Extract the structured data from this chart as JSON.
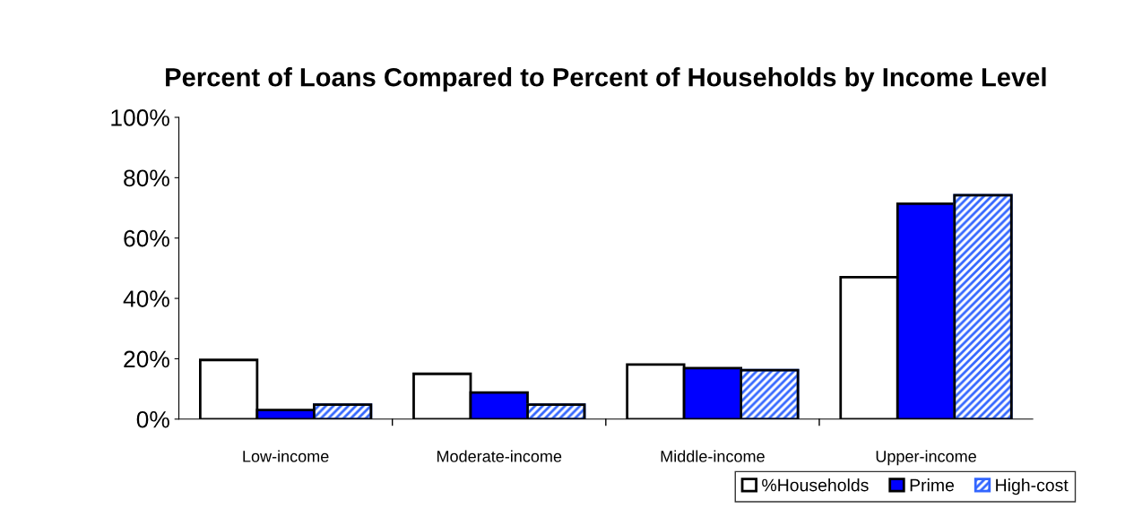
{
  "chart_data": {
    "type": "bar",
    "title": "Percent of Loans Compared to Percent of Households by Income Level",
    "categories": [
      "Low-income",
      "Moderate-income",
      "Middle-income",
      "Upper-income"
    ],
    "series": [
      {
        "name": "%Households",
        "color": "#ffffff",
        "values": [
          19.6,
          15.0,
          18.1,
          47.0
        ]
      },
      {
        "name": "Prime",
        "color": "#0000ff",
        "values": [
          3.0,
          8.8,
          16.9,
          71.4
        ]
      },
      {
        "name": "High-cost",
        "color": "#3366ff",
        "values": [
          4.8,
          4.8,
          16.2,
          74.2
        ]
      }
    ],
    "ylim": [
      0,
      100
    ],
    "yticks": [
      {
        "value": 0,
        "label": "0%"
      },
      {
        "value": 20,
        "label": "20%"
      },
      {
        "value": 40,
        "label": "40%"
      },
      {
        "value": 60,
        "label": "60%"
      },
      {
        "value": 80,
        "label": "80%"
      },
      {
        "value": 100,
        "label": "100%"
      }
    ],
    "grid": false,
    "legend": "bottom right"
  }
}
